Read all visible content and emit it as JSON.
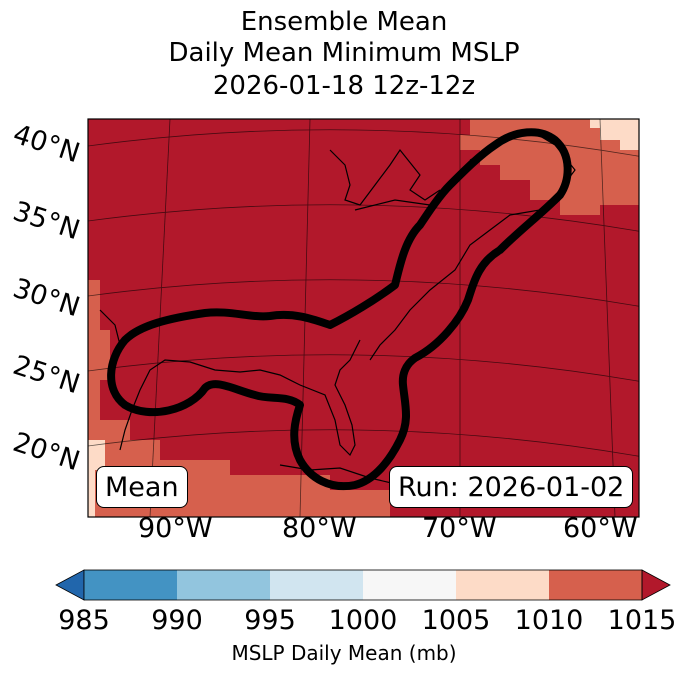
{
  "title": {
    "line1": "Ensemble Mean",
    "line2": "Daily Mean Minimum MSLP",
    "line3": "2026-01-18 12z-12z"
  },
  "map": {
    "lat_labels": [
      "40°N",
      "35°N",
      "30°N",
      "25°N",
      "20°N"
    ],
    "lon_labels": [
      "90°W",
      "80°W",
      "70°W",
      "60°W"
    ],
    "mean_box": "Mean",
    "run_box": "Run: 2026-01-02",
    "colors": {
      "dominant": "#b2182b",
      "c1010": "#d6604d",
      "c1005": "#fddbc7",
      "contour": "#000000"
    }
  },
  "colorbar": {
    "ticks": [
      "985",
      "990",
      "995",
      "1000",
      "1005",
      "1010",
      "1015"
    ],
    "label": "MSLP Daily Mean (mb)",
    "colors": [
      "#4393c3",
      "#92c5de",
      "#d1e5f0",
      "#f7f7f7",
      "#fddbc7",
      "#d6604d"
    ],
    "under_color": "#2166ac",
    "over_color": "#b2182b"
  }
}
